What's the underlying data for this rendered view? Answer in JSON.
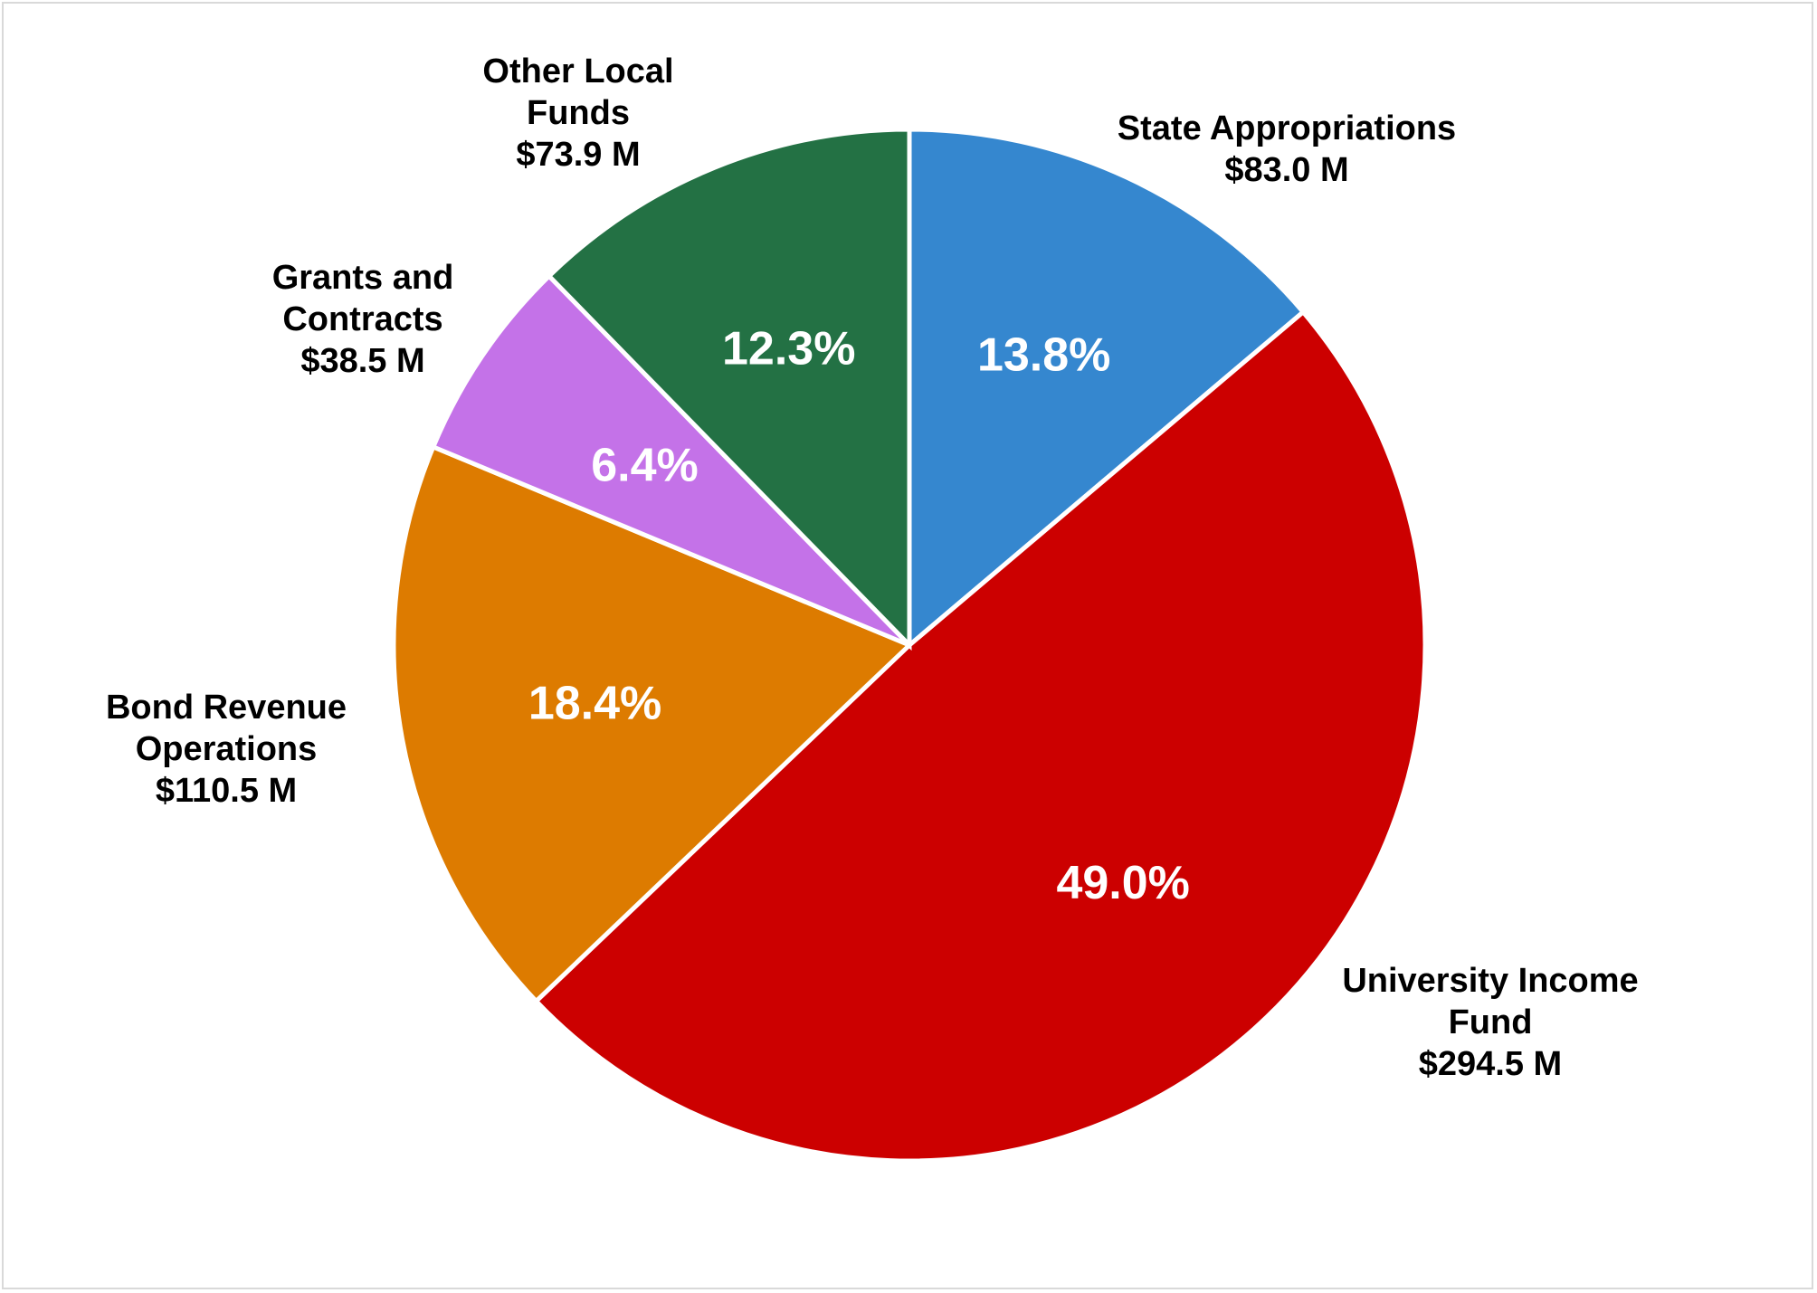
{
  "chart_data": {
    "type": "pie",
    "title": "",
    "start_angle_deg": 0,
    "direction": "clockwise",
    "slices": [
      {
        "label_lines": [
          "State Appropriations",
          "$83.0 M"
        ],
        "category": "State Appropriations",
        "amount": "$83.0 M",
        "value": 83.0,
        "percent": "13.8%",
        "color": "#3587CF"
      },
      {
        "label_lines": [
          "University Income",
          "Fund",
          "$294.5 M"
        ],
        "category": "University Income Fund",
        "amount": "$294.5 M",
        "value": 294.5,
        "percent": "49.0%",
        "color": "#CC0000"
      },
      {
        "label_lines": [
          "Bond Revenue",
          "Operations",
          "$110.5 M"
        ],
        "category": "Bond Revenue Operations",
        "amount": "$110.5 M",
        "value": 110.5,
        "percent": "18.4%",
        "color": "#DD7B00"
      },
      {
        "label_lines": [
          "Grants and",
          "Contracts",
          "$38.5 M"
        ],
        "category": "Grants and Contracts",
        "amount": "$38.5 M",
        "value": 38.5,
        "percent": "6.4%",
        "color": "#C472E8"
      },
      {
        "label_lines": [
          "Other Local",
          "Funds",
          "$73.9 M"
        ],
        "category": "Other Local Funds",
        "amount": "$73.9 M",
        "value": 73.9,
        "percent": "12.3%",
        "color": "#237144"
      }
    ]
  }
}
